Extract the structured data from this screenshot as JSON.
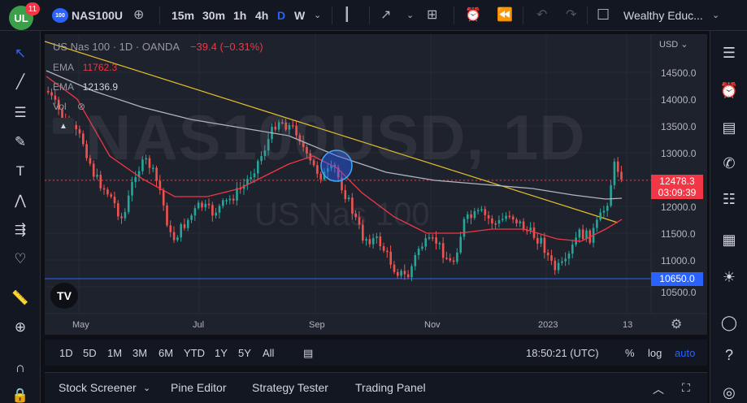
{
  "header": {
    "logo_text": "UL",
    "notification_count": "11",
    "symbol_badge": "100",
    "symbol": "NAS100U",
    "timeframes": [
      "15m",
      "30m",
      "1h",
      "4h",
      "D",
      "W"
    ],
    "active_timeframe": "D",
    "layout_name": "Wealthy Educ..."
  },
  "chart": {
    "title": "US Nas 100 · 1D · OANDA",
    "change": "−39.4 (−0.31%)",
    "ema1_label": "EMA",
    "ema1_value": "11762.3",
    "ema2_label": "EMA",
    "ema2_value": "12136.9",
    "vol_label": "Vol",
    "watermark_symbol": "NAS100USD, 1D",
    "watermark_name": "US Nas 100",
    "currency": "USD",
    "price_axis": [
      "14500.0",
      "14000.0",
      "13500.0",
      "13000.0",
      "12000.0",
      "11500.0",
      "11000.0",
      "10500.0"
    ],
    "time_axis": [
      "May",
      "Jul",
      "Sep",
      "Nov",
      "2023",
      "13"
    ],
    "current_price": "12478.3",
    "countdown": "03:09:39",
    "support_level": "10650.0",
    "colors": {
      "up": "#26a69a",
      "down": "#ef5350",
      "ema_fast": "#f23645",
      "ema_slow": "#b2b5be",
      "trendline": "#e6c229",
      "support": "#2962ff"
    }
  },
  "range_bar": {
    "ranges": [
      "1D",
      "5D",
      "1M",
      "3M",
      "6M",
      "YTD",
      "1Y",
      "5Y",
      "All"
    ],
    "clock": "18:50:21 (UTC)",
    "percent": "%",
    "log": "log",
    "auto": "auto"
  },
  "bottom_panel": {
    "tabs": [
      "Stock Screener",
      "Pine Editor",
      "Strategy Tester",
      "Trading Panel"
    ]
  }
}
